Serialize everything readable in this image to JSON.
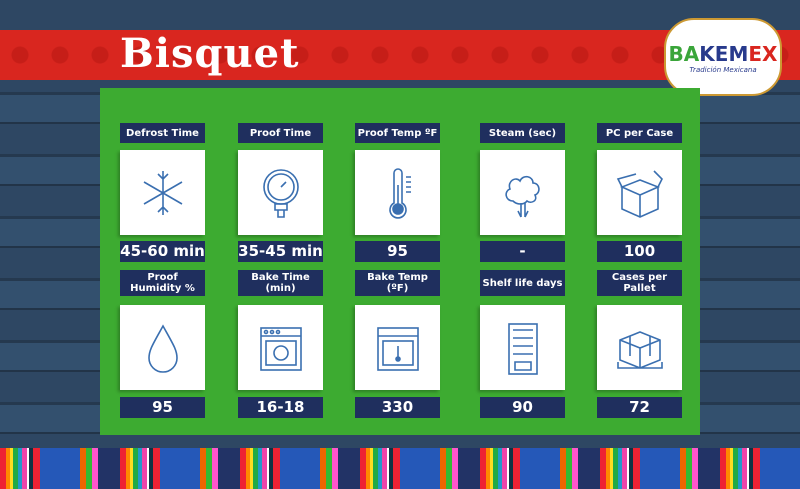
{
  "title": "Bisquet",
  "logo": {
    "brand": "BAKEMEX",
    "tagline": "Tradición Mexicana"
  },
  "colors": {
    "banner": "#d9261f",
    "panel": "#3dab31",
    "label_bg": "#1f2f5e",
    "icon": "#3a6fb0"
  },
  "specs": [
    {
      "label": "Defrost Time",
      "value": "45-60 min",
      "icon": "snowflake-icon"
    },
    {
      "label": "Proof Time",
      "value": "35-45 min",
      "icon": "pressure-gauge-icon"
    },
    {
      "label": "Proof Temp ºF",
      "value": "95",
      "icon": "thermometer-icon"
    },
    {
      "label": "Steam (sec)",
      "value": "-",
      "icon": "steam-cloud-icon"
    },
    {
      "label": "PC per Case",
      "value": "100",
      "icon": "open-box-icon"
    },
    {
      "label": "Proof Humidity %",
      "value": "95",
      "icon": "water-drop-icon"
    },
    {
      "label": "Bake Time (min)",
      "value": "16-18",
      "icon": "oven-timer-icon"
    },
    {
      "label": "Bake Temp (ºF)",
      "value": "330",
      "icon": "oven-thermometer-icon"
    },
    {
      "label": "Shelf life days",
      "value": "90",
      "icon": "vending-shelf-icon"
    },
    {
      "label": "Cases per Pallet",
      "value": "72",
      "icon": "pallet-icon"
    }
  ]
}
